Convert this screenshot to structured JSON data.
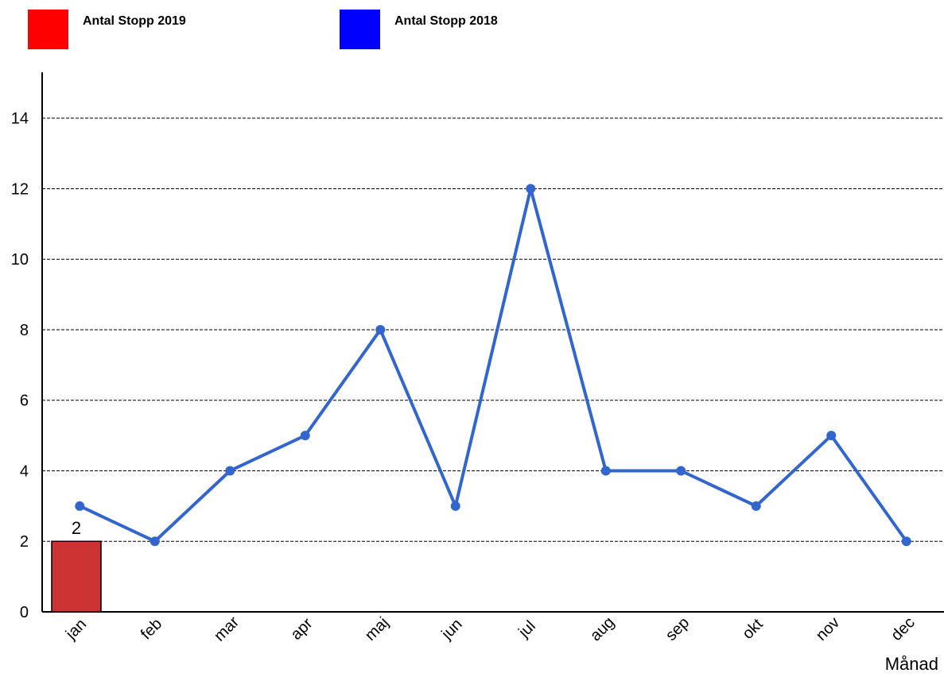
{
  "legend": [
    {
      "name": "Antal Stopp 2019",
      "color": "#ff0000"
    },
    {
      "name": "Antal Stopp 2018",
      "color": "#0000ff"
    }
  ],
  "chart_data": {
    "type": "bar",
    "categories": [
      "jan",
      "feb",
      "mar",
      "apr",
      "maj",
      "jun",
      "jul",
      "aug",
      "sep",
      "okt",
      "nov",
      "dec"
    ],
    "series": [
      {
        "name": "Antal Stopp 2019",
        "type": "bar",
        "color": "#cc3333",
        "values": [
          2,
          null,
          null,
          null,
          null,
          null,
          null,
          null,
          null,
          null,
          null,
          null
        ],
        "data_labels": [
          "2"
        ]
      },
      {
        "name": "Antal Stopp 2018",
        "type": "line",
        "color": "#3366cc",
        "values": [
          3,
          2,
          4,
          5,
          8,
          3,
          12,
          4,
          4,
          3,
          5,
          2
        ]
      }
    ],
    "xlabel": "Månad",
    "ylabel": "",
    "ylim": [
      0,
      15.3
    ],
    "yticks": [
      0,
      2,
      4,
      6,
      8,
      10,
      12,
      14
    ],
    "grid": true,
    "legend_position": "top-left"
  }
}
